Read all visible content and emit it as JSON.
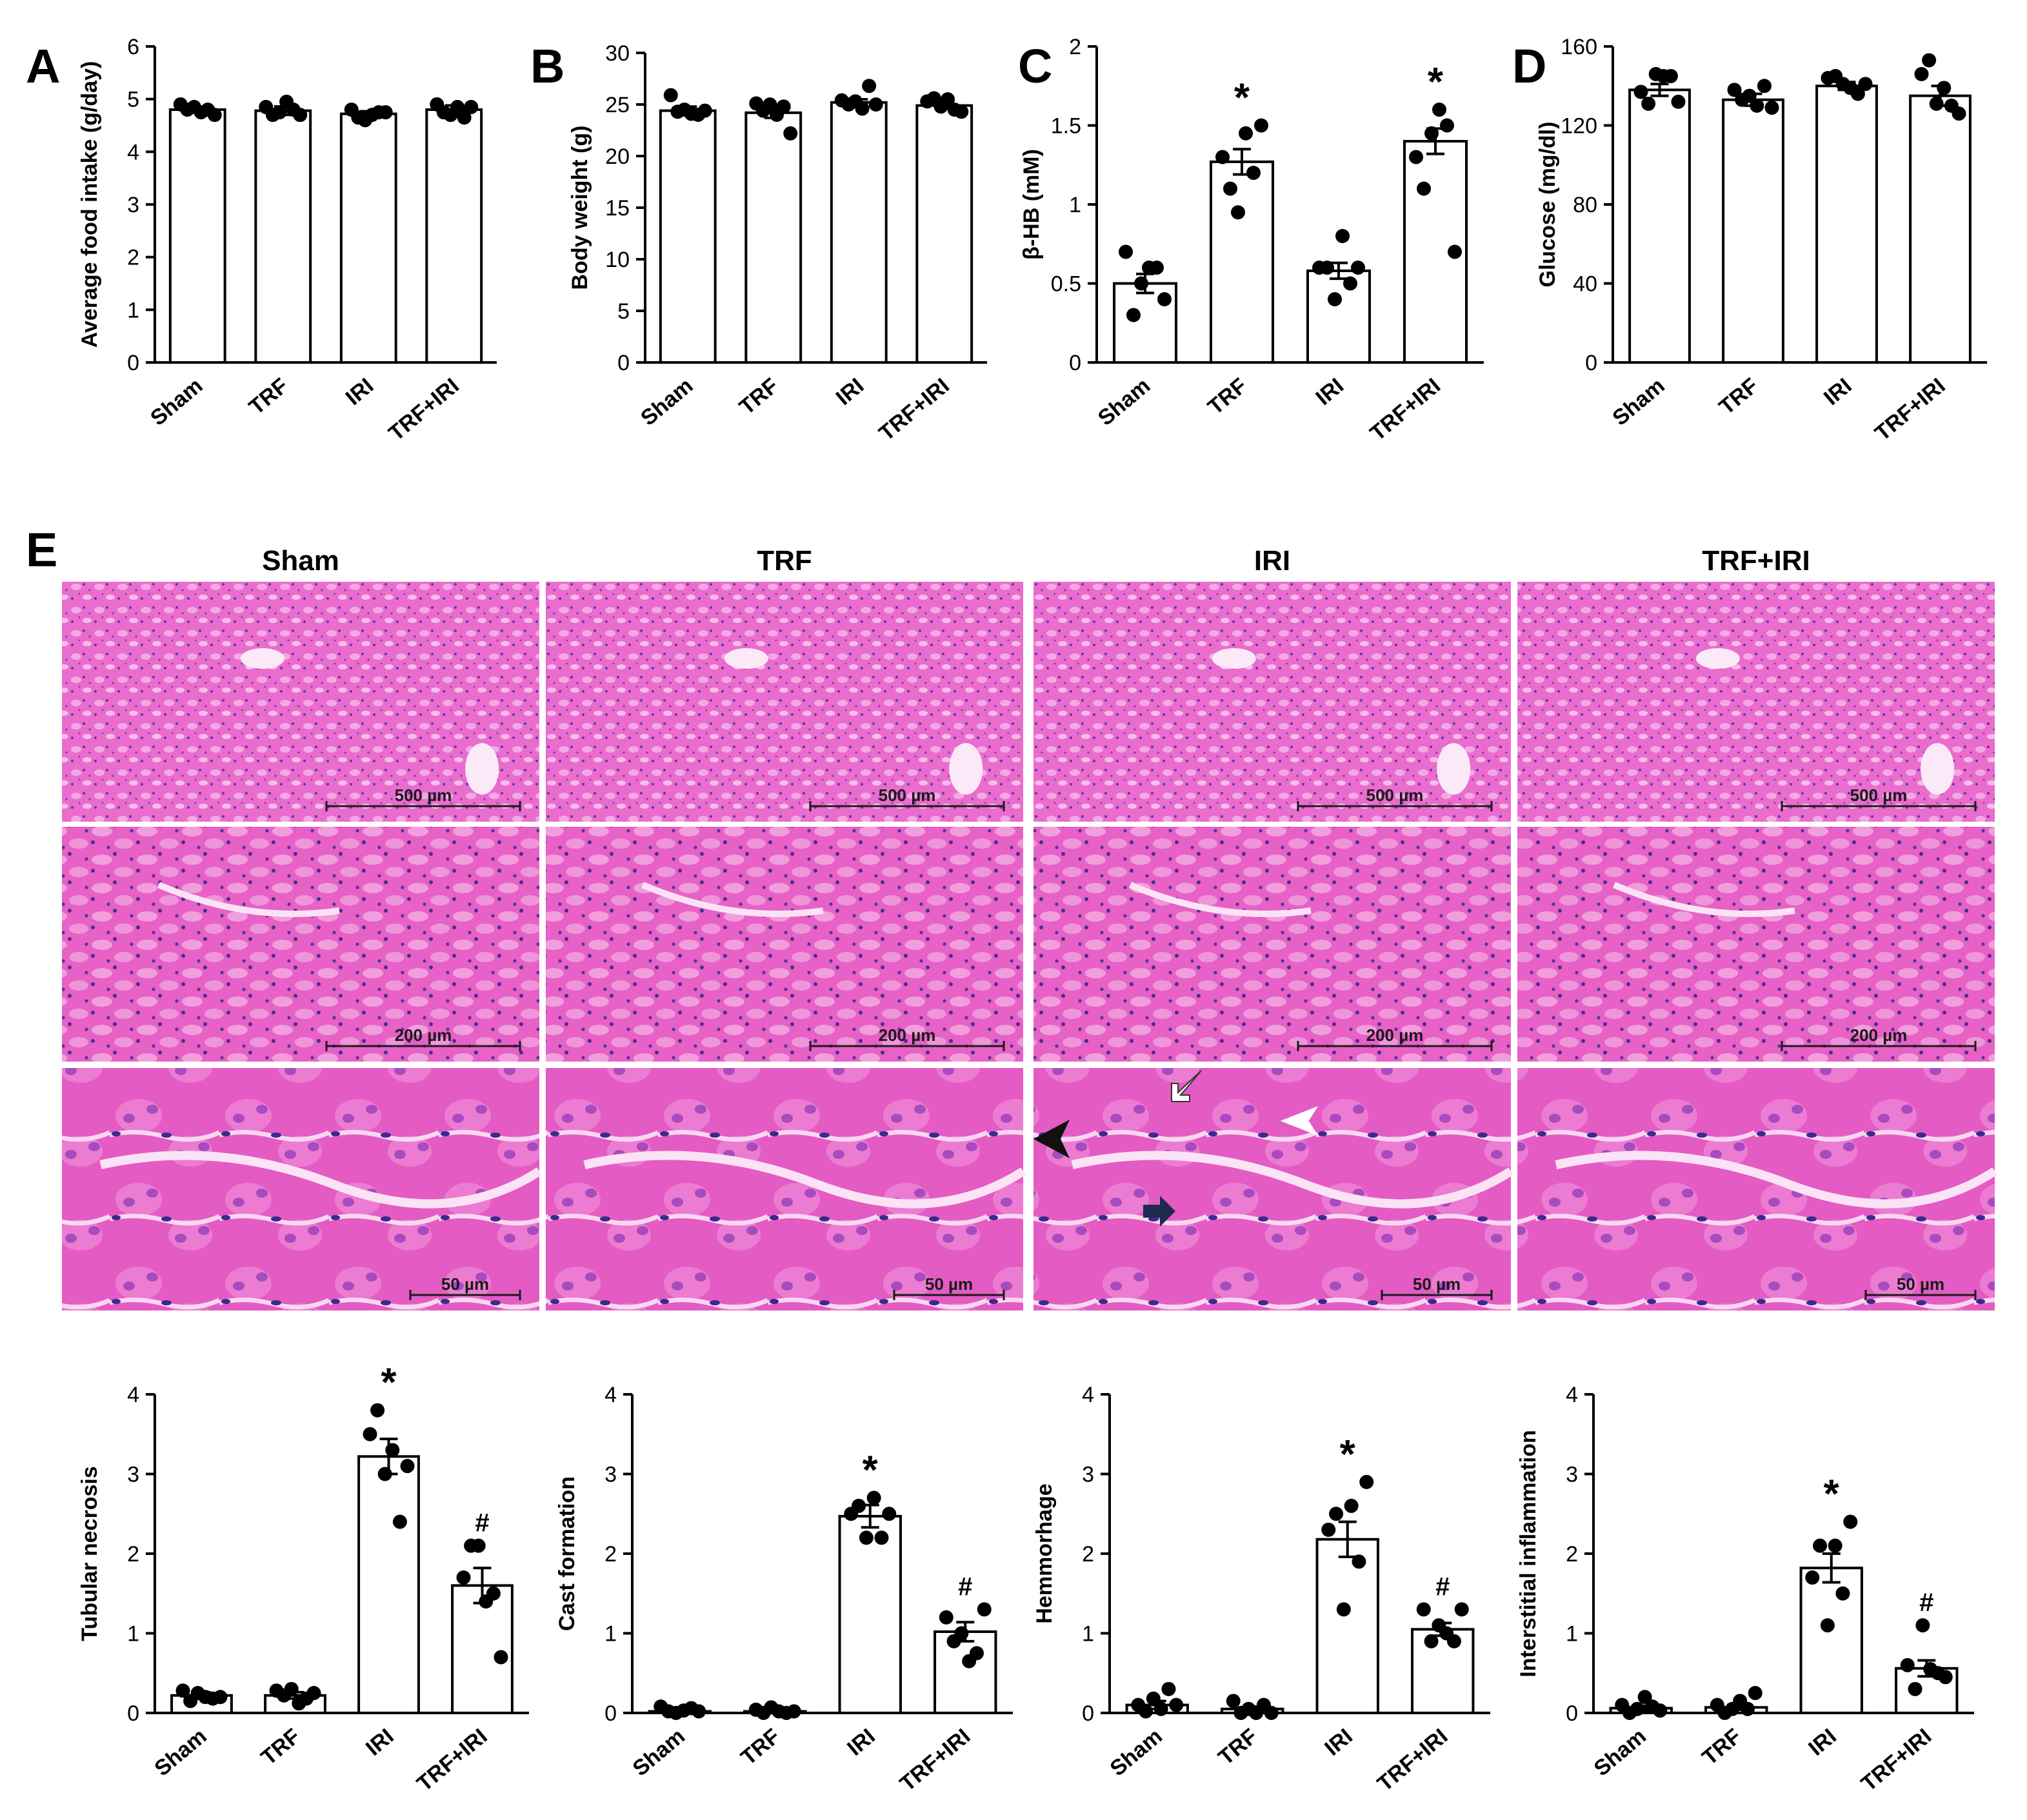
{
  "colors": {
    "bar_fill": "#ffffff",
    "stroke": "#000000",
    "dot": "#000000",
    "he_pink": "#e85fc8",
    "he_pale": "#f6c0ec",
    "nuclei": "#3b2a8c",
    "arrow_dark": "#1e2b4f"
  },
  "icons": [
    "black-arrowhead-icon",
    "white-arrowhead-icon",
    "white-arrow-icon",
    "dark-arrow-icon"
  ],
  "histology": {
    "panel_letter": "E",
    "columns": [
      "Sham",
      "TRF",
      "IRI",
      "TRF+IRI"
    ],
    "rows": [
      {
        "magnification": "low",
        "scale_bar": "500 µm"
      },
      {
        "magnification": "medium",
        "scale_bar": "200 µm"
      },
      {
        "magnification": "high",
        "scale_bar": "50 µm"
      }
    ]
  },
  "chart_data": [
    {
      "panel": "A",
      "type": "bar",
      "categories": [
        "Sham",
        "TRF",
        "IRI",
        "TRF+IRI"
      ],
      "ylabel": "Average food intake (g/day)",
      "ylim": [
        0,
        6
      ],
      "yticks": [
        "0",
        "1",
        "2",
        "3",
        "4",
        "5",
        "6"
      ],
      "values": [
        4.8,
        4.78,
        4.72,
        4.8
      ],
      "sem": [
        0.05,
        0.08,
        0.05,
        0.08
      ],
      "points": [
        [
          4.9,
          4.8,
          4.85,
          4.75,
          4.8,
          4.7
        ],
        [
          4.85,
          4.7,
          4.75,
          4.95,
          4.8,
          4.7
        ],
        [
          4.8,
          4.65,
          4.6,
          4.7,
          4.75,
          4.75
        ],
        [
          4.9,
          4.75,
          4.7,
          4.85,
          4.65,
          4.85
        ]
      ],
      "significance": [
        "",
        "",
        "",
        ""
      ]
    },
    {
      "panel": "B",
      "type": "bar",
      "categories": [
        "Sham",
        "TRF",
        "IRI",
        "TRF+IRI"
      ],
      "ylabel": "Body weight (g)",
      "ylim": [
        0,
        30
      ],
      "yticks": [
        "0",
        "5",
        "10",
        "15",
        "20",
        "25",
        "30"
      ],
      "values": [
        24.4,
        24.2,
        25.2,
        24.9
      ],
      "sem": [
        0.4,
        0.5,
        0.3,
        0.3
      ],
      "points": [
        [
          25.9,
          24.3,
          24.5,
          24.1,
          24.0,
          24.4
        ],
        [
          25.1,
          24.4,
          25.0,
          24.0,
          24.8,
          22.2
        ],
        [
          25.4,
          25.0,
          25.3,
          24.6,
          26.8,
          25.0
        ],
        [
          25.3,
          25.6,
          24.8,
          25.5,
          24.5,
          24.3
        ]
      ],
      "significance": [
        "",
        "",
        "",
        ""
      ]
    },
    {
      "panel": "C",
      "type": "bar",
      "categories": [
        "Sham",
        "TRF",
        "IRI",
        "TRF+IRI"
      ],
      "ylabel": "β-HB (mM)",
      "ylim": [
        0,
        2
      ],
      "yticks": [
        "0",
        "0.5",
        "1",
        "1.5",
        "2"
      ],
      "values": [
        0.5,
        1.27,
        0.58,
        1.4
      ],
      "sem": [
        0.06,
        0.08,
        0.05,
        0.08
      ],
      "points": [
        [
          0.7,
          0.3,
          0.5,
          0.6,
          0.6,
          0.4
        ],
        [
          1.3,
          1.1,
          0.95,
          1.45,
          1.2,
          1.5
        ],
        [
          0.6,
          0.6,
          0.4,
          0.8,
          0.5,
          0.6
        ],
        [
          1.3,
          1.1,
          1.45,
          1.6,
          1.5,
          0.7
        ]
      ],
      "significance": [
        "",
        "*",
        "",
        "*"
      ]
    },
    {
      "panel": "D",
      "type": "bar",
      "categories": [
        "Sham",
        "TRF",
        "IRI",
        "TRF+IRI"
      ],
      "ylabel": "Glucose (mg/dl)",
      "ylim": [
        0,
        160
      ],
      "yticks": [
        "0",
        "40",
        "80",
        "120",
        "160"
      ],
      "values": [
        138,
        133,
        140,
        135
      ],
      "sem": [
        3,
        3,
        2,
        5
      ],
      "points": [
        [
          137,
          131,
          146,
          145,
          145,
          132
        ],
        [
          138,
          133,
          135,
          130,
          140,
          129
        ],
        [
          144,
          145,
          141,
          139,
          136,
          141
        ],
        [
          146,
          153,
          131,
          139,
          130,
          126
        ]
      ],
      "significance": [
        "",
        "",
        "",
        ""
      ]
    },
    {
      "panel": "E",
      "type": "bar",
      "categories": [
        "Sham",
        "TRF",
        "IRI",
        "TRF+IRI"
      ],
      "ylabel": "Tubular necrosis",
      "ylim": [
        0,
        4
      ],
      "yticks": [
        "0",
        "1",
        "2",
        "3",
        "4"
      ],
      "values": [
        0.22,
        0.22,
        3.22,
        1.6
      ],
      "sem": [
        0.04,
        0.04,
        0.22,
        0.22
      ],
      "points": [
        [
          0.28,
          0.15,
          0.25,
          0.2,
          0.18,
          0.2
        ],
        [
          0.28,
          0.22,
          0.3,
          0.12,
          0.18,
          0.25
        ],
        [
          3.5,
          3.8,
          3.0,
          3.3,
          2.4,
          3.1
        ],
        [
          1.7,
          2.1,
          2.1,
          1.4,
          1.5,
          0.7
        ]
      ],
      "significance": [
        "",
        "",
        "*",
        "#"
      ]
    },
    {
      "panel": "E",
      "type": "bar",
      "categories": [
        "Sham",
        "TRF",
        "IRI",
        "TRF+IRI"
      ],
      "ylabel": "Cast formation",
      "ylim": [
        0,
        4
      ],
      "yticks": [
        "0",
        "1",
        "2",
        "3",
        "4"
      ],
      "values": [
        0.02,
        0.02,
        2.47,
        1.02
      ],
      "sem": [
        0.02,
        0.02,
        0.14,
        0.12
      ],
      "points": [
        [
          0.08,
          0.02,
          0.0,
          0.03,
          0.06,
          0.02
        ],
        [
          0.04,
          0.0,
          0.07,
          0.02,
          0.0,
          0.02
        ],
        [
          2.5,
          2.6,
          2.2,
          2.7,
          2.2,
          2.5
        ],
        [
          1.2,
          0.9,
          1.0,
          0.65,
          0.75,
          1.3
        ]
      ],
      "significance": [
        "",
        "",
        "*",
        "#"
      ]
    },
    {
      "panel": "E",
      "type": "bar",
      "categories": [
        "Sham",
        "TRF",
        "IRI",
        "TRF+IRI"
      ],
      "ylabel": "Hemmorhage",
      "ylim": [
        0,
        4
      ],
      "yticks": [
        "0",
        "1",
        "2",
        "3",
        "4"
      ],
      "values": [
        0.1,
        0.05,
        2.18,
        1.05
      ],
      "sem": [
        0.05,
        0.03,
        0.22,
        0.08
      ],
      "points": [
        [
          0.1,
          0.02,
          0.18,
          0.05,
          0.3,
          0.1
        ],
        [
          0.15,
          0.0,
          0.05,
          0.0,
          0.1,
          0.0
        ],
        [
          2.3,
          2.5,
          1.3,
          2.6,
          1.9,
          2.9
        ],
        [
          1.3,
          0.9,
          1.1,
          1.0,
          0.9,
          1.3
        ]
      ],
      "significance": [
        "",
        "",
        "*",
        "#"
      ]
    },
    {
      "panel": "E",
      "type": "bar",
      "categories": [
        "Sham",
        "TRF",
        "IRI",
        "TRF+IRI"
      ],
      "ylabel": "Interstitial inflammation",
      "ylim": [
        0,
        4
      ],
      "yticks": [
        "0",
        "1",
        "2",
        "3",
        "4"
      ],
      "values": [
        0.06,
        0.07,
        1.82,
        0.56
      ],
      "sem": [
        0.03,
        0.03,
        0.18,
        0.1
      ],
      "points": [
        [
          0.1,
          0.0,
          0.05,
          0.2,
          0.08,
          0.03
        ],
        [
          0.1,
          0.0,
          0.05,
          0.15,
          0.05,
          0.25
        ],
        [
          1.7,
          2.1,
          1.1,
          2.1,
          1.5,
          2.4
        ],
        [
          0.6,
          0.3,
          1.1,
          0.55,
          0.5,
          0.45
        ]
      ],
      "significance": [
        "",
        "",
        "*",
        "#"
      ]
    }
  ]
}
